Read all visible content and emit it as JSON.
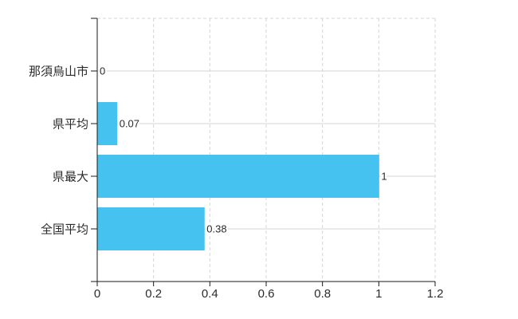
{
  "page": {
    "background": "#ffffff"
  },
  "chart_data": {
    "type": "bar",
    "orientation": "horizontal",
    "title": "",
    "xlabel": "",
    "ylabel": "",
    "categories": [
      "那須烏山市",
      "県平均",
      "県最大",
      "全国平均"
    ],
    "values": [
      0,
      0.07,
      1,
      0.38
    ],
    "value_labels": [
      "0",
      "0.07",
      "1",
      "0.38"
    ],
    "xlim": [
      0,
      1.2
    ],
    "x_ticks": [
      0,
      0.2,
      0.4,
      0.6,
      0.8,
      1,
      1.2
    ],
    "x_tick_labels": [
      "0",
      "0.2",
      "0.4",
      "0.6",
      "0.8",
      "1",
      "1.2"
    ],
    "grid": true,
    "legend": false,
    "colors": {
      "bar": "#45c2ef",
      "axis": "#1a1a1a",
      "grid": "#d6d6d6",
      "text": "#2b2b2b"
    }
  }
}
